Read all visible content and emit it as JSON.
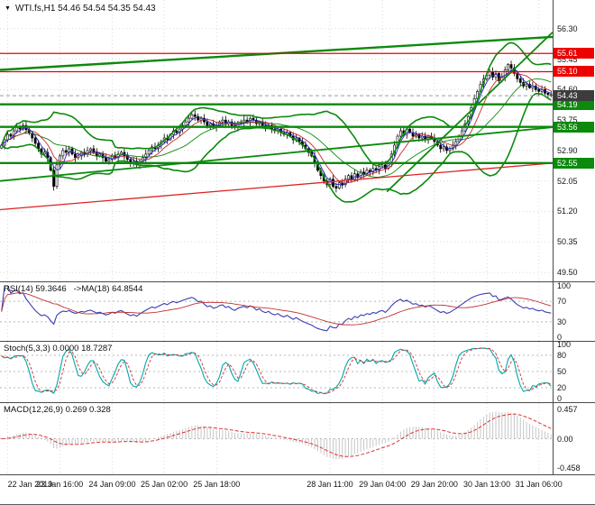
{
  "window": {
    "title_marker": "▼",
    "title": "WTI.fs,H1 54.46 54.54 54.35 54.43"
  },
  "colors": {
    "background": "#ffffff",
    "grid": "#d9d9d9",
    "panel_border": "#4a4a4a",
    "candle": "#000000",
    "level_dash": "#b8b8b8",
    "badge_current": "#3c3c3c"
  },
  "chart_data": {
    "type": "candlestick",
    "symbol": "WTI.fs",
    "timeframe": "H1",
    "ohlc_display": {
      "open": "54.46",
      "high": "54.54",
      "low": "54.35",
      "close": "54.43"
    },
    "price_axis": {
      "labels": [
        "56.30",
        "55.45",
        "54.60",
        "53.75",
        "52.90",
        "52.05",
        "51.20",
        "50.35",
        "49.50"
      ],
      "max": 57.1,
      "min": 49.25
    },
    "x_labels": [
      {
        "text": "22 Jan 2019",
        "pos": 0.014
      },
      {
        "text": "23 Jan 16:00",
        "pos": 0.108
      },
      {
        "text": "24 Jan 09:00",
        "pos": 0.203
      },
      {
        "text": "25 Jan 02:00",
        "pos": 0.297
      },
      {
        "text": "25 Jan 18:00",
        "pos": 0.392
      },
      {
        "text": "28 Jan 11:00",
        "pos": 0.597
      },
      {
        "text": "29 Jan 04:00",
        "pos": 0.692
      },
      {
        "text": "29 Jan 20:00",
        "pos": 0.786
      },
      {
        "text": "30 Jan 13:00",
        "pos": 0.881
      },
      {
        "text": "31 Jan 06:00",
        "pos": 0.975
      }
    ],
    "closes": [
      53.05,
      53.2,
      53.35,
      53.3,
      53.45,
      53.55,
      53.5,
      53.6,
      53.48,
      53.38,
      53.25,
      53.1,
      52.95,
      52.8,
      52.85,
      52.7,
      52.35,
      51.9,
      52.5,
      52.75,
      52.9,
      52.85,
      52.95,
      52.8,
      52.7,
      52.75,
      52.85,
      52.8,
      52.9,
      52.95,
      52.85,
      52.75,
      52.8,
      52.7,
      52.6,
      52.65,
      52.75,
      52.7,
      52.8,
      52.85,
      52.75,
      52.65,
      52.55,
      52.6,
      52.5,
      52.6,
      52.7,
      52.8,
      52.9,
      53.0,
      52.95,
      53.05,
      53.15,
      53.25,
      53.2,
      53.35,
      53.45,
      53.4,
      53.5,
      53.6,
      53.7,
      53.8,
      53.9,
      53.85,
      53.75,
      53.8,
      53.7,
      53.6,
      53.65,
      53.55,
      53.6,
      53.7,
      53.75,
      53.65,
      53.7,
      53.6,
      53.55,
      53.65,
      53.7,
      53.75,
      53.7,
      53.8,
      53.75,
      53.65,
      53.7,
      53.6,
      53.55,
      53.6,
      53.5,
      53.45,
      53.5,
      53.4,
      53.35,
      53.4,
      53.3,
      53.2,
      53.25,
      53.15,
      53.05,
      52.95,
      52.85,
      52.75,
      52.55,
      52.35,
      52.2,
      52.05,
      51.95,
      52.1,
      51.9,
      51.85,
      52.0,
      51.95,
      52.1,
      52.2,
      52.1,
      52.25,
      52.15,
      52.3,
      52.25,
      52.35,
      52.3,
      52.4,
      52.35,
      52.45,
      52.5,
      52.4,
      52.55,
      52.8,
      53.05,
      53.3,
      53.45,
      53.35,
      53.5,
      53.4,
      53.3,
      53.35,
      53.25,
      53.3,
      53.2,
      53.3,
      53.25,
      53.15,
      53.05,
      52.95,
      53.0,
      52.9,
      52.95,
      53.05,
      53.15,
      53.3,
      53.45,
      53.65,
      53.85,
      54.1,
      54.35,
      54.55,
      54.75,
      54.9,
      55.0,
      55.1,
      54.95,
      55.05,
      54.85,
      54.95,
      55.15,
      55.3,
      55.2,
      55.05,
      54.9,
      54.8,
      54.7,
      54.75,
      54.65,
      54.7,
      54.6,
      54.55,
      54.6,
      54.5,
      54.46,
      54.43
    ],
    "hlines": [
      {
        "price": 55.61,
        "label": "55.61",
        "color": "#ee0000",
        "width": 1.3,
        "badge": true
      },
      {
        "price": 55.1,
        "label": "55.10",
        "color": "#ee0000",
        "width": 1.3,
        "badge": true
      },
      {
        "price": 54.19,
        "label": "54.19",
        "color": "#0b8a0b",
        "width": 2.4,
        "badge": true
      },
      {
        "price": 53.56,
        "label": "53.56",
        "color": "#0b8a0b",
        "width": 2.4,
        "badge": true
      },
      {
        "price": 52.55,
        "label": "52.55",
        "color": "#0b8a0b",
        "width": 2.4,
        "badge": true
      }
    ],
    "tlines": [
      {
        "x1": 0,
        "p1": 55.15,
        "x2": 1,
        "p2": 56.07,
        "color": "#0b8a0b",
        "width": 2.4
      },
      {
        "x1": 0,
        "p1": 52.05,
        "x2": 1,
        "p2": 53.55,
        "color": "#0b8a0b",
        "width": 1.8
      },
      {
        "x1": 0.7,
        "p1": 51.75,
        "x2": 1,
        "p2": 56.2,
        "color": "#0b8a0b",
        "width": 1.8
      },
      {
        "x1": 0,
        "p1": 51.25,
        "x2": 1,
        "p2": 52.55,
        "color": "#dd2222",
        "width": 1.3
      }
    ],
    "current_price": {
      "value": 54.43,
      "label": "54.43"
    },
    "indicators": {
      "bollinger": {
        "period": 20,
        "deviation": 2,
        "color": "#0b8a0b"
      },
      "ma": {
        "fast_period": 4,
        "fast_color": "#2929c8",
        "slow_period": 8,
        "slow_color": "#c82929"
      },
      "rsi": {
        "label": "RSI(14) 59.3646   ->MA(18) 64.8544",
        "value": "59.3646",
        "ma_value": "64.8544",
        "period": 14,
        "ma_period": 18,
        "axis": [
          "100",
          "70",
          "30",
          "0"
        ],
        "levels": [
          70,
          30
        ],
        "line_color": "#3c3cb4",
        "ma_color": "#c23232"
      },
      "stoch": {
        "label": "Stoch(5,3,3) 0.0000 18.7287",
        "value": "0.0000",
        "signal_value": "18.7287",
        "k": 5,
        "slowing": 3,
        "d": 3,
        "axis": [
          "100",
          "80",
          "50",
          "20",
          "0"
        ],
        "levels": [
          80,
          50,
          20
        ],
        "main_color": "#00a8a8",
        "signal_color": "#cc3333"
      },
      "macd": {
        "label": "MACD(12,26,9) 0.269 0.328",
        "value": "0.269",
        "signal_value": "0.328",
        "fast": 12,
        "slow": 26,
        "signal": 9,
        "axis": [
          "0.457",
          "0.00",
          "-0.458"
        ],
        "hist_color": "#c6c6c6",
        "signal_color": "#dd3333"
      }
    }
  }
}
